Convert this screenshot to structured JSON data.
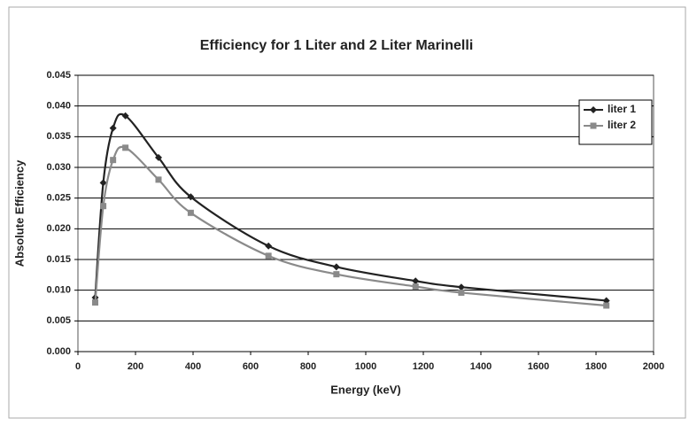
{
  "chart_data": {
    "type": "line",
    "title": "Efficiency for 1 Liter and 2 Liter Marinelli",
    "x_label": "Energy (keV)",
    "y_label": "Absolute Efficiency",
    "x": [
      60,
      88,
      122,
      165,
      280,
      392,
      662,
      898,
      1173,
      1332,
      1836
    ],
    "series": [
      {
        "name": "liter 1",
        "color": "#222222",
        "marker": "diamond",
        "values": [
          0.0088,
          0.0275,
          0.0364,
          0.0384,
          0.0316,
          0.0252,
          0.0172,
          0.0138,
          0.0115,
          0.0105,
          0.0083
        ]
      },
      {
        "name": "liter 2",
        "color": "#8a8a8a",
        "marker": "square",
        "values": [
          0.008,
          0.0237,
          0.0312,
          0.0332,
          0.028,
          0.0226,
          0.0156,
          0.0126,
          0.0106,
          0.0096,
          0.0075
        ]
      }
    ],
    "xlim": [
      0,
      2000
    ],
    "xticks": [
      0,
      200,
      400,
      600,
      800,
      1000,
      1200,
      1400,
      1600,
      1800,
      2000
    ],
    "ylim": [
      0,
      0.045
    ],
    "yticks": [
      {
        "value": 0,
        "label": "0.000"
      },
      {
        "value": 0.005,
        "label": "0.005"
      },
      {
        "value": 0.01,
        "label": "0.010"
      },
      {
        "value": 0.015,
        "label": "0.015"
      },
      {
        "value": 0.02,
        "label": "0.020"
      },
      {
        "value": 0.025,
        "label": "0.025"
      },
      {
        "value": 0.03,
        "label": "0.030"
      },
      {
        "value": 0.035,
        "label": "0.035"
      },
      {
        "value": 0.04,
        "label": "0.040"
      },
      {
        "value": 0.045,
        "label": "0.045"
      }
    ],
    "grid": true,
    "legend": "top-right"
  }
}
